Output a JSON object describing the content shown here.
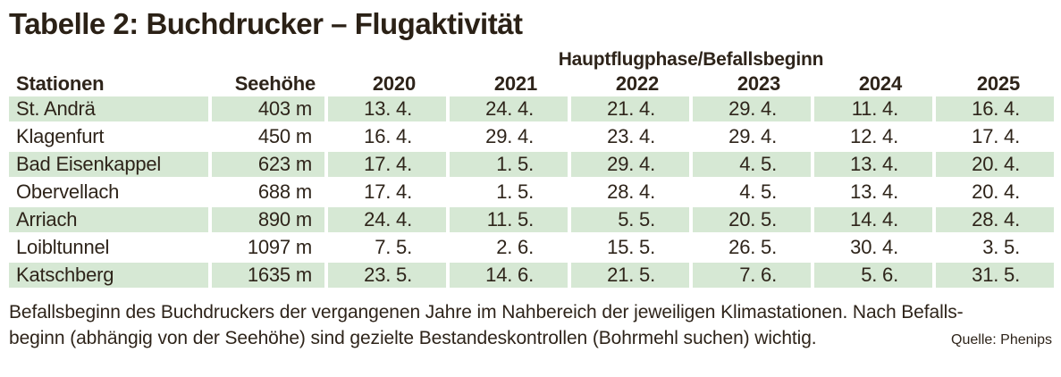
{
  "title": "Tabelle 2: Buchdrucker – Flugaktivität",
  "table": {
    "group_header": "Hauptflugphase/Befallsbeginn",
    "columns": [
      "Stationen",
      "Seehöhe",
      "2020",
      "2021",
      "2022",
      "2023",
      "2024",
      "2025"
    ],
    "rows": [
      {
        "station": "St. Andrä",
        "seehoehe": "403 m",
        "values": [
          "13. 4.",
          "24. 4.",
          "21. 4.",
          "29. 4.",
          "11. 4.",
          "16. 4."
        ]
      },
      {
        "station": "Klagenfurt",
        "seehoehe": "450 m",
        "values": [
          "16. 4.",
          "29. 4.",
          "23. 4.",
          "29. 4.",
          "12. 4.",
          "17. 4."
        ]
      },
      {
        "station": "Bad Eisenkappel",
        "seehoehe": "623 m",
        "values": [
          "17. 4.",
          "1. 5.",
          "29. 4.",
          "4. 5.",
          "13. 4.",
          "20. 4."
        ]
      },
      {
        "station": "Obervellach",
        "seehoehe": "688 m",
        "values": [
          "17. 4.",
          "1. 5.",
          "28. 4.",
          "4. 5.",
          "13. 4.",
          "20. 4."
        ]
      },
      {
        "station": "Arriach",
        "seehoehe": "890 m",
        "values": [
          "24. 4.",
          "11. 5.",
          "5. 5.",
          "20. 5.",
          "14. 4.",
          "28. 4."
        ]
      },
      {
        "station": "Loibltunnel",
        "seehoehe": "1097 m",
        "values": [
          "7. 5.",
          "2. 6.",
          "15. 5.",
          "26. 5.",
          "30. 4.",
          "3. 5."
        ]
      },
      {
        "station": "Katschberg",
        "seehoehe": "1635 m",
        "values": [
          "23. 5.",
          "14. 6.",
          "21. 5.",
          "7. 6.",
          "5. 6.",
          "31. 5."
        ]
      }
    ]
  },
  "footer": {
    "line1": "Befallsbeginn des Buchdruckers der vergangenen Jahre im Nahbereich der jeweiligen Klimastationen. Nach Befalls-",
    "line2": "beginn (abhängig von der Seehöhe) sind gezielte Bestandeskontrollen (Bohrmehl suchen) wichtig.",
    "source": "Quelle: Phenips"
  },
  "colors": {
    "row_green": "#d6e8d4",
    "text": "#2e241a"
  }
}
